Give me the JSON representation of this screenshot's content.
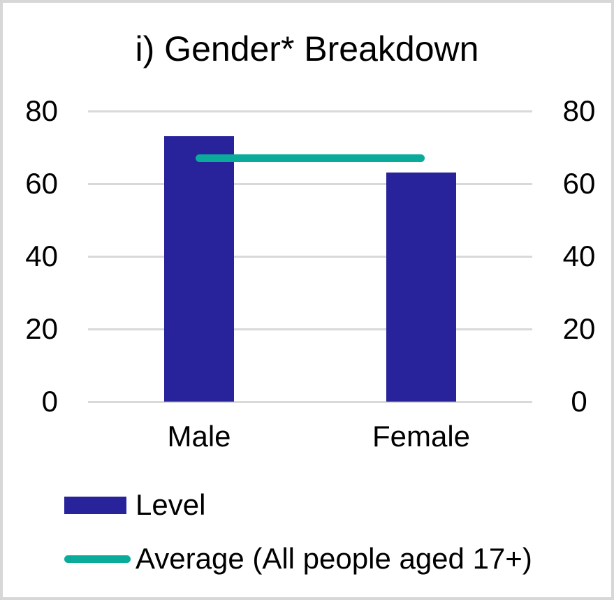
{
  "chart_data": {
    "type": "bar",
    "title": "i) Gender* Breakdown",
    "categories": [
      "Male",
      "Female"
    ],
    "series": [
      {
        "name": "Level",
        "type": "bar",
        "values": [
          73,
          63
        ],
        "color": "#28239b"
      },
      {
        "name": "Average (All people aged 17+)",
        "type": "line",
        "value": 67,
        "color": "#0aab9b"
      }
    ],
    "ylim": [
      0,
      80
    ],
    "yticks": [
      0,
      20,
      40,
      60,
      80
    ],
    "y_axis_sides": "both",
    "grid": true,
    "gridline_color": "#d9d9d9",
    "legend_position": "bottom-left",
    "colors": {
      "bar": "#28239b",
      "average_line": "#0aab9b",
      "gridline": "#d9d9d9",
      "frame_border": "#d7d7d7",
      "text": "#000000",
      "background": "#ffffff"
    }
  }
}
